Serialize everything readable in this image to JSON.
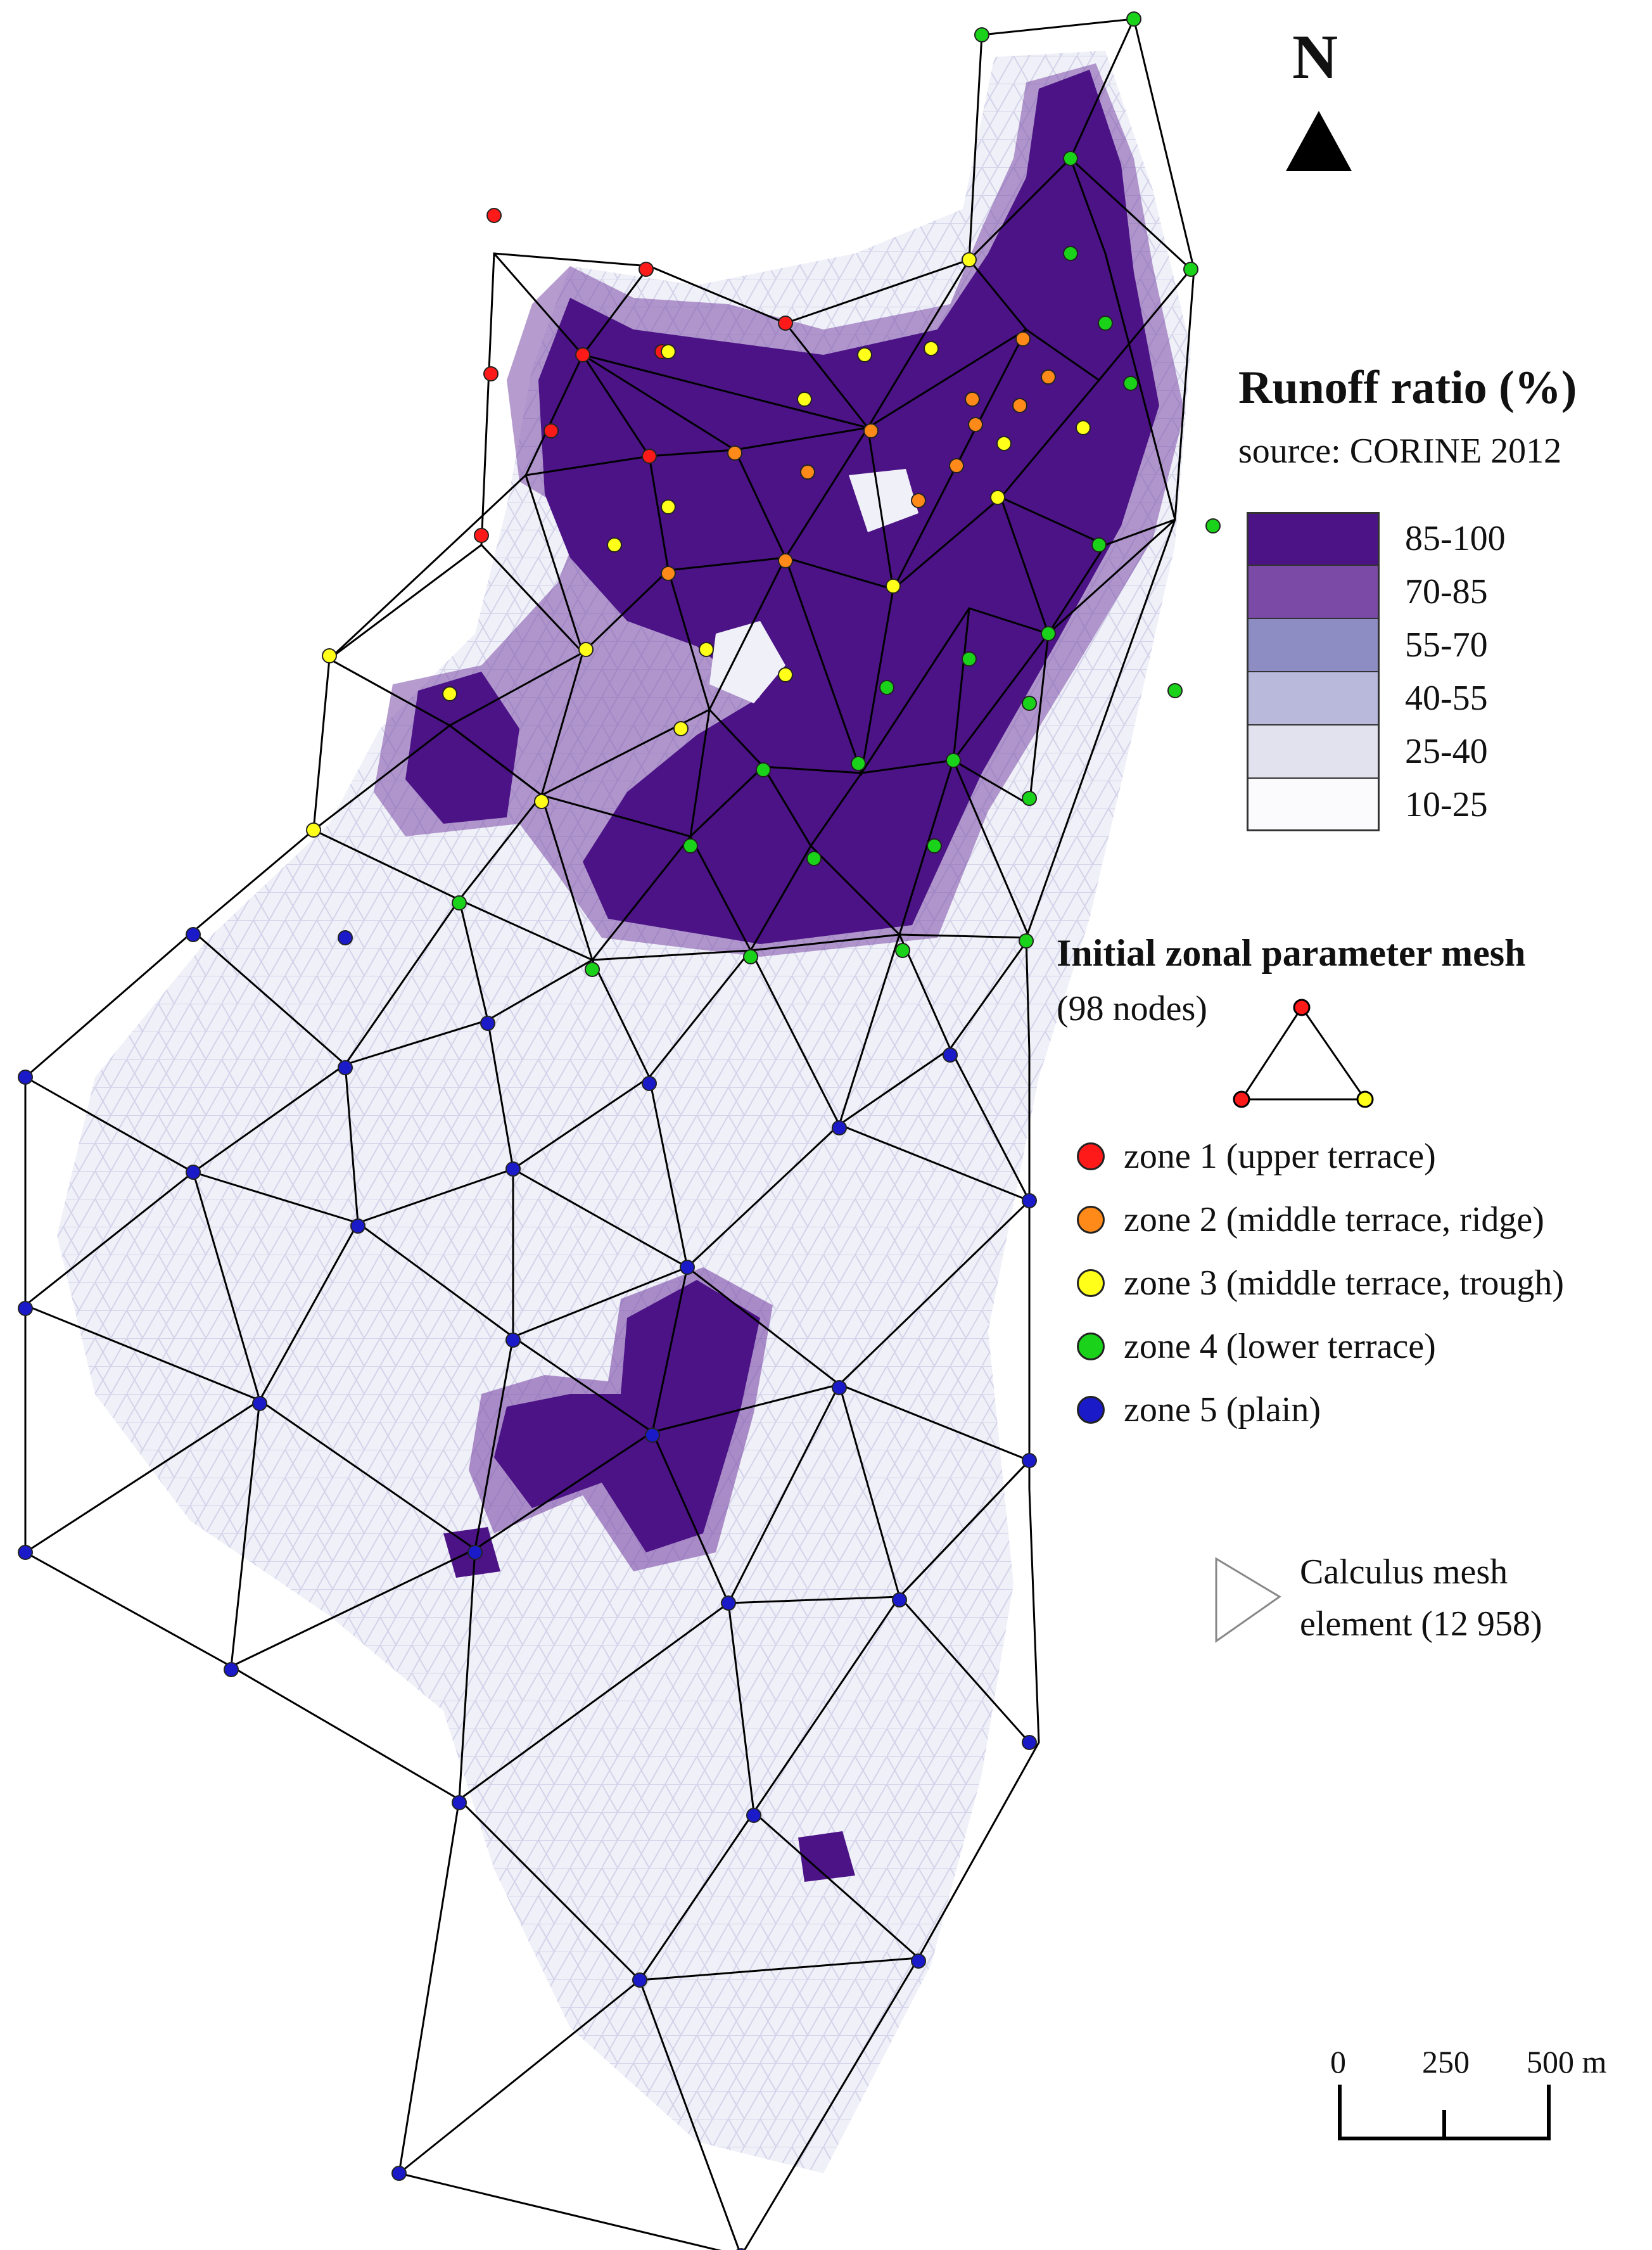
{
  "north": {
    "label": "N"
  },
  "runoff_legend": {
    "title": "Runoff ratio (%)",
    "source": "source: CORINE 2012",
    "classes": [
      {
        "label": "85-100",
        "color": "#4b1386"
      },
      {
        "label": "70-85",
        "color": "#7a4aa6"
      },
      {
        "label": "55-70",
        "color": "#8d8dc4"
      },
      {
        "label": "40-55",
        "color": "#b9b9dc"
      },
      {
        "label": "25-40",
        "color": "#e2e2ef"
      },
      {
        "label": "10-25",
        "color": "#fbfbfd"
      }
    ]
  },
  "zonal_mesh": {
    "title": "Initial zonal parameter mesh",
    "nodes": "(98 nodes)",
    "zones": [
      {
        "label": "zone 1 (upper terrace)",
        "color": "#ff1a1a"
      },
      {
        "label": "zone 2 (middle terrace, ridge)",
        "color": "#ff8a1a"
      },
      {
        "label": "zone 3 (middle terrace, trough)",
        "color": "#ffff1a"
      },
      {
        "label": "zone 4 (lower terrace)",
        "color": "#1ad21a"
      },
      {
        "label": "zone 5 (plain)",
        "color": "#1a1ac8"
      }
    ]
  },
  "calculus_mesh": {
    "label_line1": "Calculus mesh",
    "label_line2": "element (12 958)"
  },
  "scale_bar": {
    "labels": [
      "0",
      "250",
      "500 m"
    ]
  }
}
